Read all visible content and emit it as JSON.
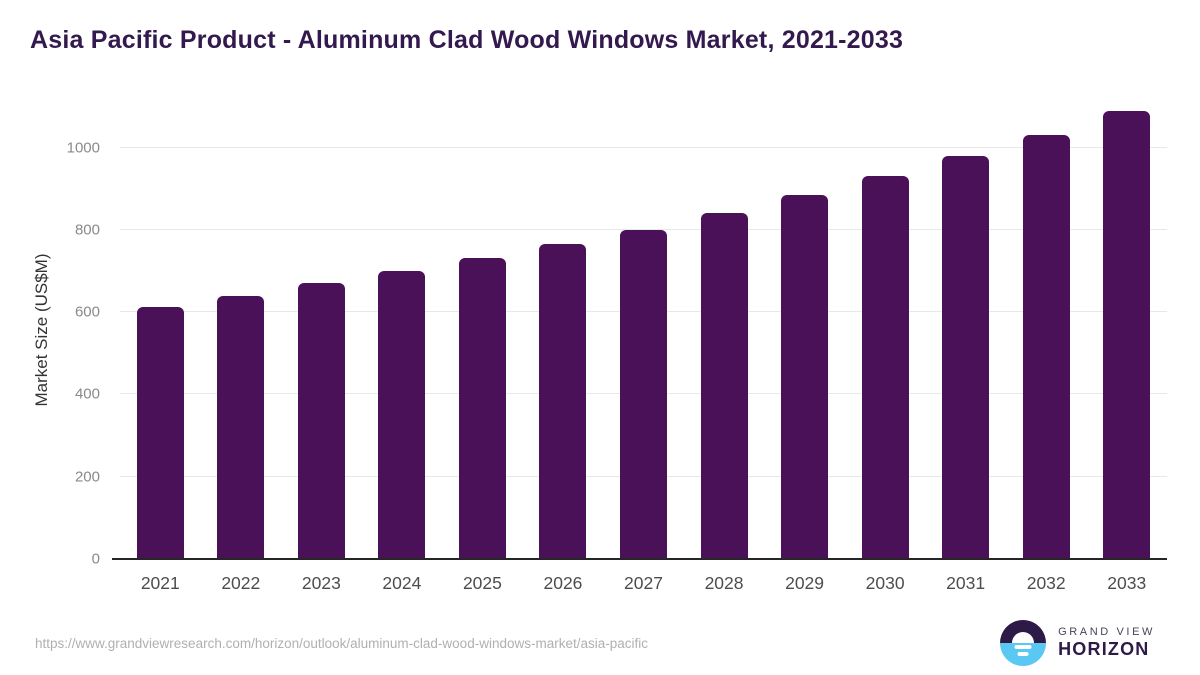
{
  "chart_data": {
    "type": "bar",
    "title": "Asia Pacific Product - Aluminum Clad Wood Windows Market, 2021-2033",
    "categories": [
      "2021",
      "2022",
      "2023",
      "2024",
      "2025",
      "2026",
      "2027",
      "2028",
      "2029",
      "2030",
      "2031",
      "2032",
      "2033"
    ],
    "values": [
      612,
      640,
      670,
      700,
      731,
      766,
      801,
      841,
      885,
      931,
      980,
      1031,
      1090
    ],
    "xlabel": "",
    "ylabel": "Market Size (US$M)",
    "ylim": [
      0,
      1116
    ],
    "yticks": [
      0,
      200,
      400,
      600,
      800,
      1000
    ],
    "grid": true,
    "legend": false,
    "bar_color": "#4a1158"
  },
  "footer": {
    "url": "https://www.grandviewresearch.com/horizon/outlook/aluminum-clad-wood-windows-market/asia-pacific",
    "logo_line1": "GRAND VIEW",
    "logo_line2": "HORIZON"
  },
  "colors": {
    "bar": "#4a1158",
    "title": "#33194d",
    "axis_line": "#262626",
    "gridline": "#e8e8e8",
    "y_tick": "#8a8a8a",
    "x_tick": "#4d4d4d",
    "url": "#b0b0b0",
    "logo_dark": "#2e1a47",
    "logo_blue": "#5ac8f2",
    "logo_grandview": "#494358"
  }
}
